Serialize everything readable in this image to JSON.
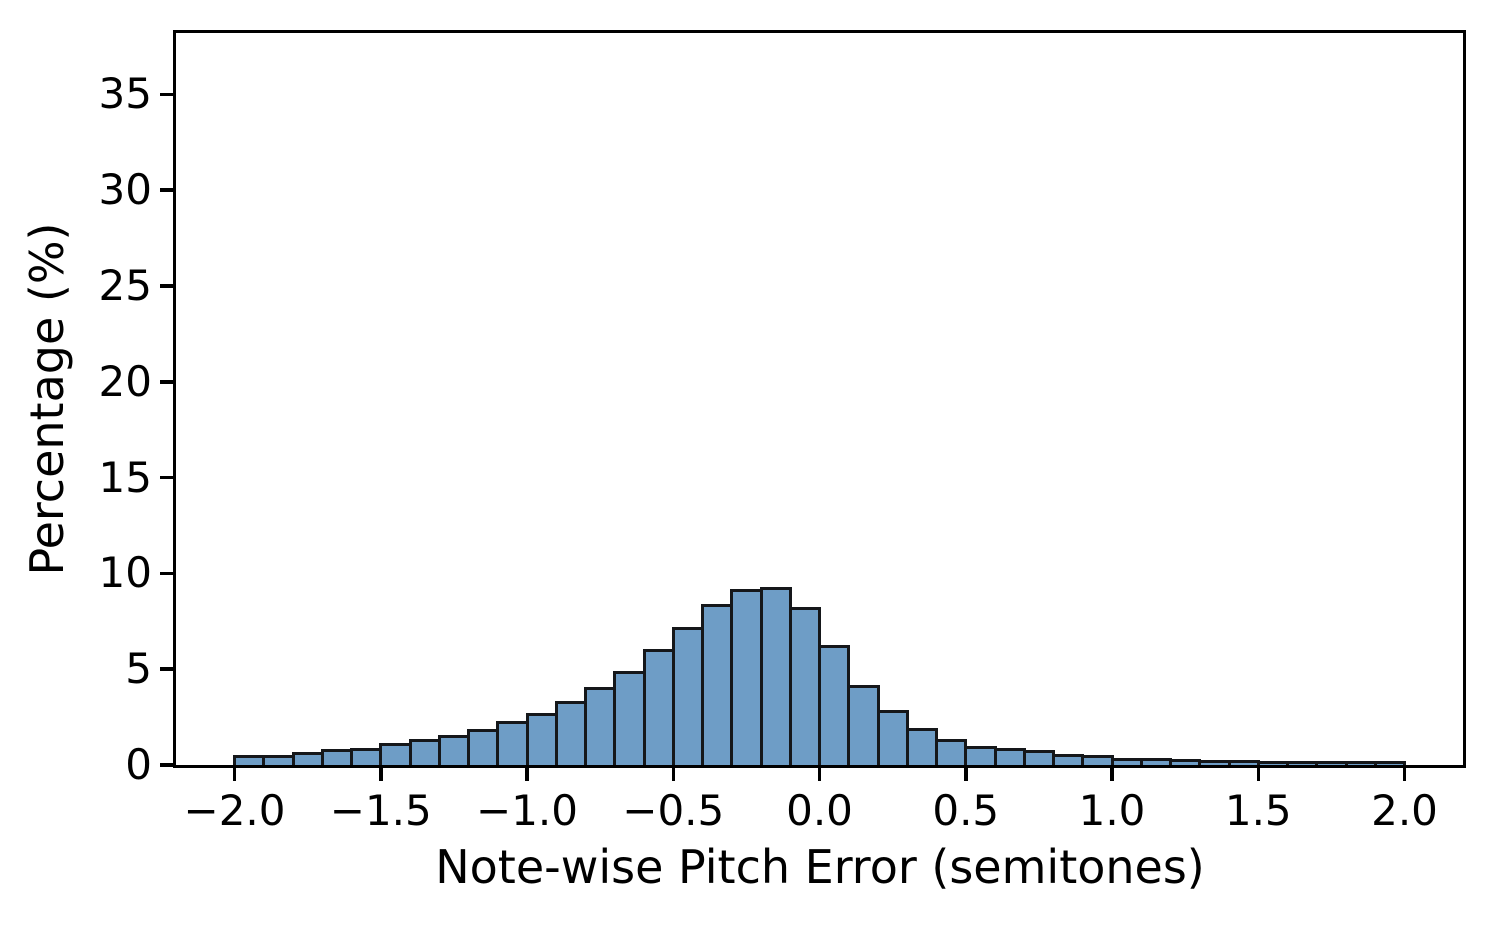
{
  "figure": {
    "background": "#ffffff",
    "axis_color": "#000000"
  },
  "chart_data": {
    "type": "bar",
    "subtype": "histogram",
    "title": "",
    "xlabel": "Note-wise Pitch Error (semitones)",
    "ylabel": "Percentage (%)",
    "xlim": [
      -2.2,
      2.2
    ],
    "ylim": [
      0,
      38.2
    ],
    "grid": false,
    "legend": null,
    "bin_start": -2.0,
    "bin_width": 0.1,
    "bin_centers": [
      -1.95,
      -1.85,
      -1.75,
      -1.65,
      -1.55,
      -1.45,
      -1.35,
      -1.25,
      -1.15,
      -1.05,
      -0.95,
      -0.85,
      -0.75,
      -0.65,
      -0.55,
      -0.45,
      -0.35,
      -0.25,
      -0.15,
      -0.05,
      0.05,
      0.15,
      0.25,
      0.35,
      0.45,
      0.55,
      0.65,
      0.75,
      0.85,
      0.95,
      1.05,
      1.15,
      1.25,
      1.35,
      1.45,
      1.55,
      1.65,
      1.75,
      1.85,
      1.95
    ],
    "values": [
      0.45,
      0.42,
      0.58,
      0.75,
      0.8,
      1.05,
      1.3,
      1.5,
      1.8,
      2.2,
      2.65,
      3.25,
      4.0,
      4.85,
      5.95,
      7.15,
      8.3,
      9.1,
      9.2,
      8.15,
      6.2,
      4.1,
      2.8,
      1.85,
      1.3,
      0.9,
      0.82,
      0.72,
      0.5,
      0.42,
      0.3,
      0.27,
      0.21,
      0.18,
      0.17,
      0.14,
      0.13,
      0.11,
      0.1,
      0.08
    ],
    "x_ticks": [
      {
        "value": -2.0,
        "label": "−2.0"
      },
      {
        "value": -1.5,
        "label": "−1.5"
      },
      {
        "value": -1.0,
        "label": "−1.0"
      },
      {
        "value": -0.5,
        "label": "−0.5"
      },
      {
        "value": 0.0,
        "label": "0.0"
      },
      {
        "value": 0.5,
        "label": "0.5"
      },
      {
        "value": 1.0,
        "label": "1.0"
      },
      {
        "value": 1.5,
        "label": "1.5"
      },
      {
        "value": 2.0,
        "label": "2.0"
      }
    ],
    "y_ticks": [
      {
        "value": 0,
        "label": "0"
      },
      {
        "value": 5,
        "label": "5"
      },
      {
        "value": 10,
        "label": "10"
      },
      {
        "value": 15,
        "label": "15"
      },
      {
        "value": 20,
        "label": "20"
      },
      {
        "value": 25,
        "label": "25"
      },
      {
        "value": 30,
        "label": "30"
      },
      {
        "value": 35,
        "label": "35"
      }
    ],
    "bar_fill": "#6e9dc6",
    "bar_edge": "#15171a"
  }
}
